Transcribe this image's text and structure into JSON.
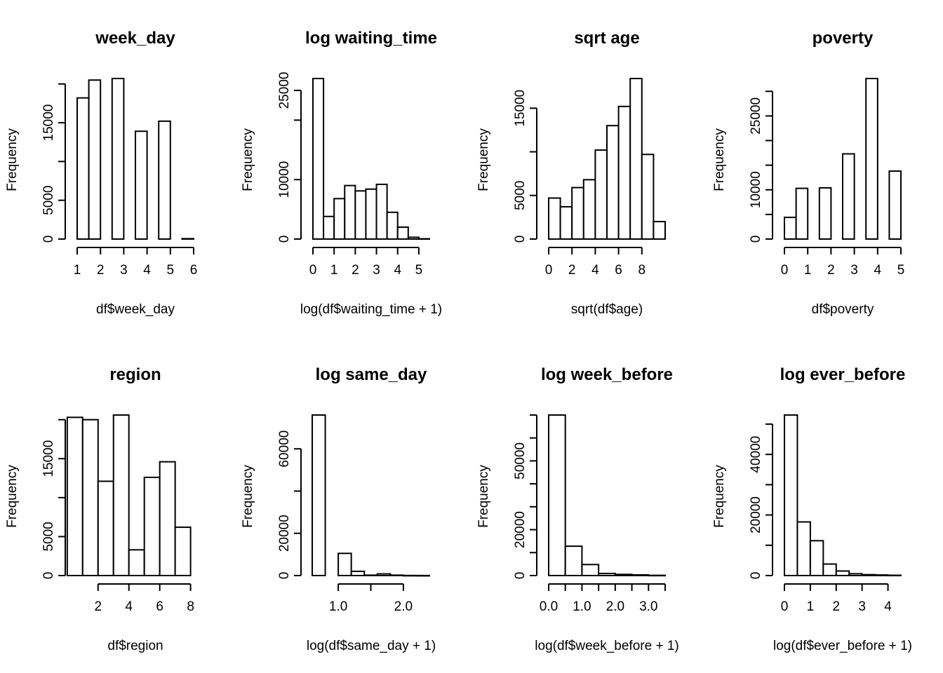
{
  "chart_data": [
    {
      "type": "bar",
      "title": "week_day",
      "xlabel": "df$week_day",
      "ylabel": "Frequency",
      "bins": [
        [
          1,
          1.5
        ],
        [
          1.5,
          2
        ],
        [
          2,
          2.5
        ],
        [
          2.5,
          3
        ],
        [
          3,
          3.5
        ],
        [
          3.5,
          4
        ],
        [
          4,
          4.5
        ],
        [
          4.5,
          5
        ],
        [
          5,
          5.5
        ],
        [
          5.5,
          6
        ]
      ],
      "values": [
        18200,
        20500,
        0,
        20700,
        0,
        13900,
        0,
        15200,
        0,
        50
      ],
      "xlim": [
        1,
        6
      ],
      "ylim": [
        0,
        18000
      ],
      "xticks": [
        1,
        2,
        3,
        4,
        5,
        6
      ],
      "xtick_labels": [
        "1",
        "2",
        "3",
        "4",
        "5",
        "6"
      ],
      "yticks": [
        0,
        5000,
        10000,
        15000,
        20000
      ],
      "ytick_labels": [
        "0",
        "5000",
        "",
        "15000",
        ""
      ]
    },
    {
      "type": "bar",
      "title": "log waiting_time",
      "xlabel": "log(df$waiting_time + 1)",
      "ylabel": "Frequency",
      "bins": [
        [
          0,
          0.5
        ],
        [
          0.5,
          1
        ],
        [
          1,
          1.5
        ],
        [
          1.5,
          2
        ],
        [
          2,
          2.5
        ],
        [
          2.5,
          3
        ],
        [
          3,
          3.5
        ],
        [
          3.5,
          4
        ],
        [
          4,
          4.5
        ],
        [
          4.5,
          5
        ],
        [
          5,
          5.5
        ]
      ],
      "values": [
        27000,
        3800,
        6800,
        9000,
        8100,
        8400,
        9200,
        4500,
        2000,
        300,
        50
      ],
      "xlim": [
        0,
        5.5
      ],
      "ylim": [
        0,
        27000
      ],
      "xticks": [
        0,
        1,
        2,
        3,
        4,
        5
      ],
      "xtick_labels": [
        "0",
        "1",
        "2",
        "3",
        "4",
        "5"
      ],
      "yticks": [
        0,
        10000,
        20000,
        25000
      ],
      "ytick_labels": [
        "0",
        "10000",
        "",
        "25000"
      ]
    },
    {
      "type": "bar",
      "title": "sqrt age",
      "xlabel": "sqrt(df$age)",
      "ylabel": "Frequency",
      "bins": [
        [
          0,
          1
        ],
        [
          1,
          2
        ],
        [
          2,
          3
        ],
        [
          3,
          4
        ],
        [
          4,
          5
        ],
        [
          5,
          6
        ],
        [
          6,
          7
        ],
        [
          7,
          8
        ],
        [
          8,
          9
        ],
        [
          9,
          10
        ]
      ],
      "values": [
        4700,
        3700,
        5900,
        6800,
        10200,
        13000,
        15200,
        18400,
        9700,
        2000
      ],
      "xlim": [
        0,
        10
      ],
      "ylim": [
        0,
        15000
      ],
      "xticks": [
        0,
        2,
        4,
        6,
        8
      ],
      "xtick_labels": [
        "0",
        "2",
        "4",
        "6",
        "8"
      ],
      "yticks": [
        0,
        5000,
        10000,
        15000
      ],
      "ytick_labels": [
        "0",
        "5000",
        "",
        "15000"
      ]
    },
    {
      "type": "bar",
      "title": "poverty",
      "xlabel": "df$poverty",
      "ylabel": "Frequency",
      "bins": [
        [
          0,
          0.5
        ],
        [
          0.5,
          1
        ],
        [
          1,
          1.5
        ],
        [
          1.5,
          2
        ],
        [
          2,
          2.5
        ],
        [
          2.5,
          3
        ],
        [
          3,
          3.5
        ],
        [
          3.5,
          4
        ],
        [
          4,
          4.5
        ],
        [
          4.5,
          5
        ]
      ],
      "values": [
        4400,
        10300,
        0,
        10400,
        0,
        17300,
        0,
        32600,
        0,
        13800
      ],
      "xlim": [
        0,
        5
      ],
      "ylim": [
        0,
        30000
      ],
      "xticks": [
        0,
        1,
        2,
        3,
        4,
        5
      ],
      "xtick_labels": [
        "0",
        "1",
        "2",
        "3",
        "4",
        "5"
      ],
      "yticks": [
        0,
        5000,
        10000,
        15000,
        20000,
        25000,
        30000
      ],
      "ytick_labels": [
        "0",
        "",
        "10000",
        "",
        "",
        "25000",
        ""
      ]
    },
    {
      "type": "bar",
      "title": "region",
      "xlabel": "df$region",
      "ylabel": "Frequency",
      "bins": [
        [
          0,
          1
        ],
        [
          1,
          2
        ],
        [
          2,
          3
        ],
        [
          3,
          4
        ],
        [
          4,
          5
        ],
        [
          5,
          6
        ],
        [
          6,
          7
        ],
        [
          7,
          8
        ]
      ],
      "values": [
        20300,
        20000,
        12100,
        20600,
        3300,
        12600,
        14600,
        6200
      ],
      "xlim": [
        2,
        8
      ],
      "ylim": [
        0,
        20000
      ],
      "xticks": [
        2,
        4,
        6,
        8
      ],
      "xtick_labels": [
        "2",
        "4",
        "6",
        "8"
      ],
      "yticks": [
        0,
        5000,
        10000,
        15000,
        20000
      ],
      "ytick_labels": [
        "0",
        "5000",
        "",
        "15000",
        ""
      ]
    },
    {
      "type": "bar",
      "title": "log same_day",
      "xlabel": "log(df$same_day + 1)",
      "ylabel": "Frequency",
      "bins": [
        [
          0.6,
          0.8
        ],
        [
          0.8,
          1.0
        ],
        [
          1.0,
          1.2
        ],
        [
          1.2,
          1.4
        ],
        [
          1.4,
          1.6
        ],
        [
          1.6,
          1.8
        ],
        [
          1.8,
          2.0
        ],
        [
          2.0,
          2.2
        ],
        [
          2.2,
          2.4
        ]
      ],
      "values": [
        76000,
        0,
        10500,
        2000,
        200,
        800,
        200,
        50,
        20
      ],
      "xlim": [
        1.0,
        2.0
      ],
      "ylim": [
        0,
        60000
      ],
      "xticks": [
        1.0,
        1.5,
        2.0
      ],
      "xtick_labels": [
        "1.0",
        "",
        "2.0"
      ],
      "yticks": [
        0,
        20000,
        40000,
        60000
      ],
      "ytick_labels": [
        "0",
        "20000",
        "",
        "60000"
      ]
    },
    {
      "type": "bar",
      "title": "log week_before",
      "xlabel": "log(df$week_before + 1)",
      "ylabel": "Frequency",
      "bins": [
        [
          0,
          0.5
        ],
        [
          0.5,
          1
        ],
        [
          1,
          1.5
        ],
        [
          1.5,
          2
        ],
        [
          2,
          2.5
        ],
        [
          2.5,
          3
        ],
        [
          3,
          3.5
        ]
      ],
      "values": [
        70000,
        12800,
        4800,
        900,
        500,
        300,
        100
      ],
      "xlim": [
        0,
        3.5
      ],
      "ylim": [
        0,
        70000
      ],
      "xticks": [
        0,
        0.5,
        1.0,
        1.5,
        2.0,
        2.5,
        3.0,
        3.5
      ],
      "xtick_labels": [
        "0.0",
        "",
        "1.0",
        "",
        "2.0",
        "",
        "3.0",
        ""
      ],
      "yticks": [
        0,
        10000,
        20000,
        30000,
        40000,
        50000,
        60000,
        70000
      ],
      "ytick_labels": [
        "0",
        "",
        "20000",
        "",
        "",
        "50000",
        "",
        ""
      ]
    },
    {
      "type": "bar",
      "title": "log ever_before",
      "xlabel": "log(df$ever_before + 1)",
      "ylabel": "Frequency",
      "bins": [
        [
          0,
          0.5
        ],
        [
          0.5,
          1
        ],
        [
          1,
          1.5
        ],
        [
          1.5,
          2
        ],
        [
          2,
          2.5
        ],
        [
          2.5,
          3
        ],
        [
          3,
          3.5
        ],
        [
          3.5,
          4
        ],
        [
          4,
          4.5
        ]
      ],
      "values": [
        53000,
        17700,
        11500,
        3800,
        1500,
        600,
        300,
        200,
        100
      ],
      "xlim": [
        0,
        4.5
      ],
      "ylim": [
        0,
        50000
      ],
      "xticks": [
        0,
        1,
        2,
        3,
        4
      ],
      "xtick_labels": [
        "0",
        "1",
        "2",
        "3",
        "4"
      ],
      "yticks": [
        0,
        10000,
        20000,
        30000,
        40000,
        50000
      ],
      "ytick_labels": [
        "0",
        "",
        "20000",
        "",
        "40000",
        ""
      ]
    }
  ]
}
